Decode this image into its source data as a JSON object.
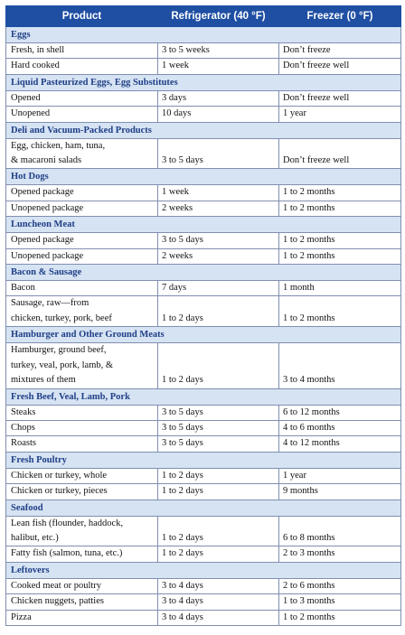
{
  "header": {
    "product": "Product",
    "refrigerator": "Refrigerator (40 °F)",
    "freezer": "Freezer (0 °F)"
  },
  "sections": [
    {
      "title": "Eggs",
      "rows": [
        {
          "product": [
            "Fresh, in shell"
          ],
          "fridge": "3 to 5 weeks",
          "freezer": "Don’t freeze"
        },
        {
          "product": [
            "Hard cooked"
          ],
          "fridge": "1 week",
          "freezer": "Don’t freeze well"
        }
      ]
    },
    {
      "title": "Liquid Pasteurized Eggs, Egg Substitutes",
      "rows": [
        {
          "product": [
            "Opened"
          ],
          "fridge": "3 days",
          "freezer": "Don’t freeze well"
        },
        {
          "product": [
            "Unopened"
          ],
          "fridge": "10 days",
          "freezer": "1 year"
        }
      ]
    },
    {
      "title": "Deli and Vacuum-Packed Products",
      "rows": [
        {
          "product": [
            "Egg, chicken, ham, tuna,",
            "& macaroni salads"
          ],
          "fridge": "3 to 5 days",
          "freezer": "Don’t freeze well"
        }
      ]
    },
    {
      "title": "Hot Dogs",
      "rows": [
        {
          "product": [
            "Opened package"
          ],
          "fridge": "1 week",
          "freezer": "1 to 2 months"
        },
        {
          "product": [
            "Unopened package"
          ],
          "fridge": "2 weeks",
          "freezer": "1 to 2 months"
        }
      ]
    },
    {
      "title": "Luncheon Meat",
      "rows": [
        {
          "product": [
            "Opened package"
          ],
          "fridge": "3 to 5 days",
          "freezer": "1 to 2 months"
        },
        {
          "product": [
            "Unopened package"
          ],
          "fridge": "2 weeks",
          "freezer": "1 to 2 months"
        }
      ]
    },
    {
      "title": "Bacon & Sausage",
      "rows": [
        {
          "product": [
            "Bacon"
          ],
          "fridge": "7 days",
          "freezer": "1 month"
        },
        {
          "product": [
            "Sausage, raw—from",
            "chicken, turkey, pork, beef"
          ],
          "fridge": "1 to 2 days",
          "freezer": "1 to 2 months"
        }
      ]
    },
    {
      "title": "Hamburger and Other Ground Meats",
      "rows": [
        {
          "product": [
            "Hamburger, ground beef,",
            "turkey, veal, pork, lamb, &",
            "mixtures of them"
          ],
          "fridge": "1 to 2 days",
          "freezer": "3 to 4 months"
        }
      ]
    },
    {
      "title": "Fresh Beef, Veal, Lamb, Pork",
      "rows": [
        {
          "product": [
            "Steaks"
          ],
          "fridge": "3 to 5 days",
          "freezer": "6 to 12 months"
        },
        {
          "product": [
            "Chops"
          ],
          "fridge": "3 to 5 days",
          "freezer": "4 to 6 months"
        },
        {
          "product": [
            "Roasts"
          ],
          "fridge": "3 to 5 days",
          "freezer": "4 to 12 months"
        }
      ]
    },
    {
      "title": "Fresh Poultry",
      "rows": [
        {
          "product": [
            "Chicken or turkey, whole"
          ],
          "fridge": "1 to 2 days",
          "freezer": "1 year"
        },
        {
          "product": [
            "Chicken or turkey, pieces"
          ],
          "fridge": "1 to 2 days",
          "freezer": "9 months"
        }
      ]
    },
    {
      "title": "Seafood",
      "rows": [
        {
          "product": [
            "Lean fish (flounder, haddock,",
            "halibut, etc.)"
          ],
          "fridge": "1 to 2 days",
          "freezer": "6 to 8 months"
        },
        {
          "product": [
            "Fatty fish (salmon, tuna, etc.)"
          ],
          "fridge": "1 to 2 days",
          "freezer": "2 to 3 months"
        }
      ]
    },
    {
      "title": "Leftovers",
      "rows": [
        {
          "product": [
            "Cooked meat or poultry"
          ],
          "fridge": "3 to 4 days",
          "freezer": "2 to 6 months"
        },
        {
          "product": [
            "Chicken nuggets, patties"
          ],
          "fridge": "3 to 4 days",
          "freezer": "1 to 3 months"
        },
        {
          "product": [
            "Pizza"
          ],
          "fridge": "3 to 4 days",
          "freezer": "1 to 2 months"
        }
      ]
    }
  ],
  "colors": {
    "header_bg": "#1f4fa3",
    "category_bg": "#d6e3f3",
    "category_text": "#1f3f86",
    "border": "#7f8fb0"
  }
}
